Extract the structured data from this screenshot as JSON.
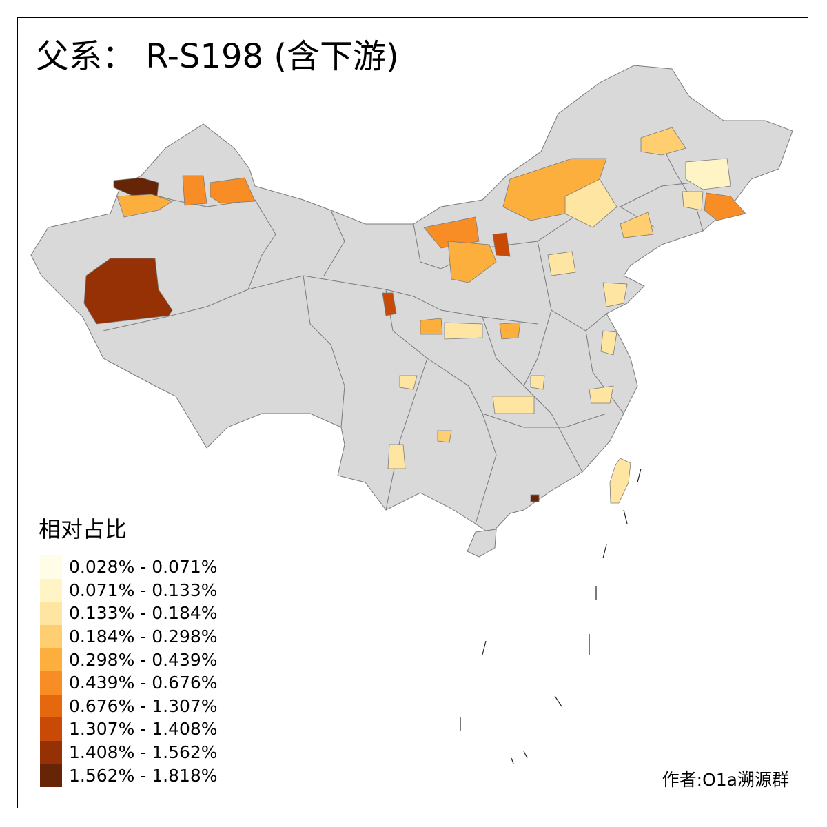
{
  "title": "父系： R-S198 (含下游)",
  "legend": {
    "title": "相对占比",
    "classes": [
      {
        "label": "0.028% - 0.071%",
        "color": "#fffde8"
      },
      {
        "label": "0.071% - 0.133%",
        "color": "#fff4c6"
      },
      {
        "label": "0.133% - 0.184%",
        "color": "#fee6a2"
      },
      {
        "label": "0.184% - 0.298%",
        "color": "#fece70"
      },
      {
        "label": "0.298% - 0.439%",
        "color": "#fdaf3e"
      },
      {
        "label": "0.439% - 0.676%",
        "color": "#f78d24"
      },
      {
        "label": "0.676% - 1.307%",
        "color": "#e5680f"
      },
      {
        "label": "1.307% - 1.408%",
        "color": "#c94a06"
      },
      {
        "label": "1.408% - 1.562%",
        "color": "#953104"
      },
      {
        "label": "1.562% - 1.818%",
        "color": "#662506"
      }
    ]
  },
  "author": "作者:O1a溯源群",
  "map": {
    "base_color": "#d9d9d9",
    "border_color": "#7a7a7a",
    "highlight_regions": [
      {
        "region": "far-west-xinjiang",
        "class": 8
      },
      {
        "region": "northwest-xinjiang-dark",
        "class": 9
      },
      {
        "region": "north-xinjiang-orange",
        "class": 4
      },
      {
        "region": "north-xinjiang-yellow",
        "class": 3
      },
      {
        "region": "inner-mongolia-central",
        "class": 4
      },
      {
        "region": "ningxia",
        "class": 6
      },
      {
        "region": "gansu-strip",
        "class": 6
      },
      {
        "region": "hainan-small",
        "class": 9
      },
      {
        "region": "taiwan",
        "class": 2
      }
    ]
  }
}
